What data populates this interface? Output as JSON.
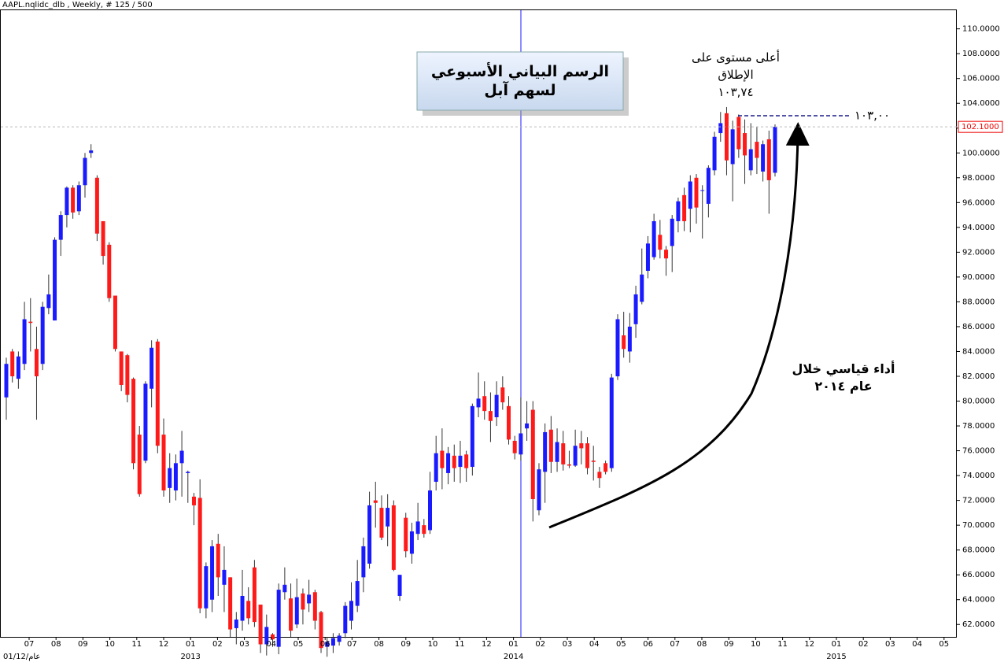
{
  "chart_data": {
    "type": "candlestick",
    "header": "AAPL.nqlidc_dlb , Weekly, # 125 / 500",
    "title": "الرسم البياني الأسبوعي لسهم آبل",
    "peak_annotation": "أعلى مستوى على الإطلاق ١٠٣,٧٤",
    "level": {
      "value": 103,
      "label": "١٠٣,٠٠"
    },
    "trend_annotation": "أداء قياسي خلال عام ٢٠١٤",
    "last_price": {
      "value": 102.1,
      "label": "102.1000"
    },
    "start_label": "01/12/عام",
    "months": [
      "07",
      "08",
      "09",
      "10",
      "11",
      "12",
      "01",
      "02",
      "03",
      "04",
      "05",
      "06",
      "07",
      "08",
      "09",
      "10",
      "11",
      "12",
      "01",
      "02",
      "03",
      "04",
      "05",
      "06",
      "07",
      "08",
      "09",
      "10",
      "11",
      "12",
      "01",
      "02",
      "03",
      "04",
      "05"
    ],
    "years": [
      "2013",
      "2014",
      "2015"
    ],
    "up_color": "#1a1aff",
    "down_color": "#ff1a1a",
    "open": [
      80.3,
      84,
      81.8,
      83,
      86.4,
      84.2,
      83,
      87.5,
      86.5,
      93,
      95,
      97.2,
      95.3,
      97.4,
      100,
      98,
      94.5,
      92.6,
      88.5,
      84,
      83.7,
      81.8,
      77.3,
      75.2,
      81,
      84.8,
      77.3,
      73,
      72.8,
      75,
      74.2,
      72.3,
      72.2,
      63.3,
      64,
      68.5,
      65.2,
      65.8,
      61.7,
      62.3,
      63.9,
      66.6,
      63.6,
      60.4,
      61.2,
      60.2,
      64.6,
      64.1,
      62,
      64.5,
      63.7,
      64.6,
      63,
      60.2,
      60.3,
      60.6,
      61.3,
      62.3,
      63.5,
      65.8,
      66.9,
      72,
      71.4,
      69.9,
      71.6,
      64.3,
      70.6,
      67.7,
      69.3,
      70,
      69.6,
      73.5,
      76,
      74.2,
      75.6,
      74.7,
      75.7,
      74.7,
      79.5,
      80.4,
      79.2,
      78.7,
      81.1,
      79.6,
      76.8,
      75.7,
      77.8,
      79.3,
      71.2,
      74.3,
      77.7,
      75.1,
      76.6,
      74.9,
      74.8,
      76.6,
      76.6,
      75.2,
      74.3,
      75,
      74.6,
      82,
      85.3,
      84,
      86.2,
      88,
      90.5,
      91.6,
      93.4,
      92.2,
      92.5,
      94.5,
      96.6,
      95.5,
      98,
      97,
      95.9,
      98.6,
      101.6,
      103.2,
      99.1,
      102.9,
      101.6,
      98.6,
      100.9,
      98.5,
      101.1,
      98.4
    ],
    "high": [
      83.5,
      84.2,
      84,
      88,
      88.3,
      86,
      88,
      90.2,
      93.2,
      95.3,
      97.3,
      97.4,
      97.7,
      100,
      100.7,
      98.2,
      94.5,
      92.8,
      88.5,
      84,
      83.8,
      81.9,
      78,
      81.6,
      84.9,
      85,
      78.6,
      75.8,
      75.7,
      77.6,
      74.4,
      72.6,
      73.7,
      67,
      68.8,
      69.3,
      68.3,
      65.8,
      63,
      66.4,
      65,
      67.2,
      63.6,
      62.8,
      61.3,
      65.3,
      66.6,
      65.3,
      65.7,
      64.9,
      65.6,
      64.8,
      63.1,
      61,
      61.3,
      61.3,
      63.8,
      65.4,
      67.2,
      69,
      72.7,
      73.5,
      72.4,
      72.5,
      72,
      66,
      71,
      70.2,
      71.8,
      70.5,
      74.3,
      77.2,
      77.8,
      76.3,
      76.5,
      76.8,
      76,
      79.8,
      82.3,
      81.6,
      80.7,
      81.6,
      82,
      80.4,
      77.2,
      80.3,
      80,
      80,
      75,
      78.2,
      78.8,
      77.8,
      77.6,
      76,
      77.7,
      77.6,
      77.1,
      76.4,
      74.7,
      75.2,
      82.2,
      87,
      87.2,
      87.1,
      89.3,
      92.3,
      93.3,
      95.1,
      94.6,
      92.5,
      95,
      96.4,
      97.2,
      98.2,
      98.3,
      97.4,
      99,
      101.7,
      103.3,
      103.7,
      102.6,
      103.1,
      102.7,
      102.4,
      102.1,
      101,
      101.8,
      102.3
    ],
    "low": [
      78.5,
      81.5,
      81,
      82.5,
      84,
      78.5,
      82.5,
      87,
      86.5,
      91.7,
      94,
      94.7,
      95,
      96.4,
      99.6,
      92.9,
      91,
      88,
      84,
      80.8,
      79.9,
      74.5,
      72.3,
      75,
      79.5,
      75.8,
      72.3,
      71.8,
      72,
      72.3,
      71.8,
      70,
      62.9,
      62.5,
      63,
      64.3,
      63,
      61,
      60.4,
      61.5,
      62,
      61.8,
      59.7,
      59.5,
      60.2,
      59.6,
      64,
      61,
      61.7,
      62,
      63,
      61.6,
      59.7,
      59.4,
      59.7,
      60.3,
      60.9,
      61.6,
      63,
      64.6,
      66.5,
      69.8,
      68.8,
      68.3,
      66.3,
      63.9,
      67.4,
      66.9,
      68.8,
      69,
      69.3,
      72.8,
      72.9,
      73.3,
      73.5,
      73.4,
      73.5,
      74,
      78.7,
      78.5,
      76.7,
      78,
      79.3,
      76.5,
      75.3,
      75.2,
      76.8,
      70.3,
      70.8,
      71.8,
      74.2,
      74.3,
      74.4,
      74.6,
      74.7,
      74.9,
      74.1,
      73.6,
      73,
      74.1,
      74.3,
      81.7,
      83.5,
      83.1,
      85.1,
      87.8,
      89.9,
      91.4,
      91.5,
      90.1,
      90.4,
      93.6,
      93.7,
      93.6,
      94.3,
      93.1,
      94.8,
      98.2,
      100.9,
      98.2,
      96.1,
      99.6,
      97.5,
      98.2,
      98.3,
      97.7,
      95.1,
      98.1
    ],
    "close": [
      83,
      82,
      83.6,
      86.6,
      86.3,
      82,
      87.6,
      88.6,
      93,
      95,
      97.2,
      95.2,
      97.4,
      99.6,
      100.2,
      93.5,
      91.7,
      88.3,
      84.2,
      81.3,
      80.5,
      75,
      72.5,
      81.4,
      84.3,
      76.4,
      72.8,
      74.6,
      75,
      76,
      74.3,
      71.6,
      63.3,
      66.7,
      68.3,
      65.8,
      66.4,
      61.6,
      62.4,
      64.3,
      62.5,
      62.2,
      60.4,
      61.8,
      60.8,
      64.8,
      65.2,
      61.5,
      64.2,
      63.2,
      64.4,
      62.3,
      60.1,
      60.6,
      60.9,
      61.1,
      63.5,
      63.9,
      65.5,
      68.3,
      71.6,
      71.8,
      69,
      71.4,
      66.4,
      66,
      67.9,
      69.5,
      70.3,
      69.3,
      72.8,
      75.8,
      74.6,
      75.8,
      74.6,
      75.6,
      74.6,
      79.6,
      80.2,
      79.2,
      78.4,
      80.5,
      79.9,
      76.9,
      75.8,
      77.4,
      78.2,
      72.1,
      74.5,
      77.5,
      75.1,
      76.7,
      74.9,
      74.8,
      76.4,
      76.2,
      74.6,
      75.1,
      73.8,
      74.3,
      81.9,
      86.6,
      84.2,
      86,
      88.6,
      90.2,
      92.7,
      94.5,
      92.2,
      91.5,
      94.7,
      96.1,
      94.5,
      97.7,
      95.6,
      97,
      98.8,
      101.3,
      102.4,
      99.4,
      101.9,
      100.3,
      99.8,
      100.3,
      99.6,
      100.7,
      97.8,
      102.1
    ],
    "ylim": [
      61,
      111.5
    ],
    "yticks": [
      {
        "value": 110,
        "label": "110.0000"
      },
      {
        "value": 108,
        "label": "108.0000"
      },
      {
        "value": 106,
        "label": "106.0000"
      },
      {
        "value": 104,
        "label": "104.0000"
      },
      {
        "value": 102,
        "label": "102.0000"
      },
      {
        "value": 100,
        "label": "100.0000"
      },
      {
        "value": 98,
        "label": "98.0000"
      },
      {
        "value": 96,
        "label": "96.0000"
      },
      {
        "value": 94,
        "label": "94.0000"
      },
      {
        "value": 92,
        "label": "92.0000"
      },
      {
        "value": 90,
        "label": "90.0000"
      },
      {
        "value": 88,
        "label": "88.0000"
      },
      {
        "value": 86,
        "label": "86.0000"
      },
      {
        "value": 84,
        "label": "84.0000"
      },
      {
        "value": 82,
        "label": "82.0000"
      },
      {
        "value": 80,
        "label": "80.0000"
      },
      {
        "value": 78,
        "label": "78.0000"
      },
      {
        "value": 76,
        "label": "76.0000"
      },
      {
        "value": 74,
        "label": "74.0000"
      },
      {
        "value": 72,
        "label": "72.0000"
      },
      {
        "value": 70,
        "label": "70.0000"
      },
      {
        "value": 68,
        "label": "68.0000"
      },
      {
        "value": 66,
        "label": "66.0000"
      },
      {
        "value": 64,
        "label": "64.0000"
      },
      {
        "value": 62,
        "label": "62.0000"
      }
    ]
  }
}
